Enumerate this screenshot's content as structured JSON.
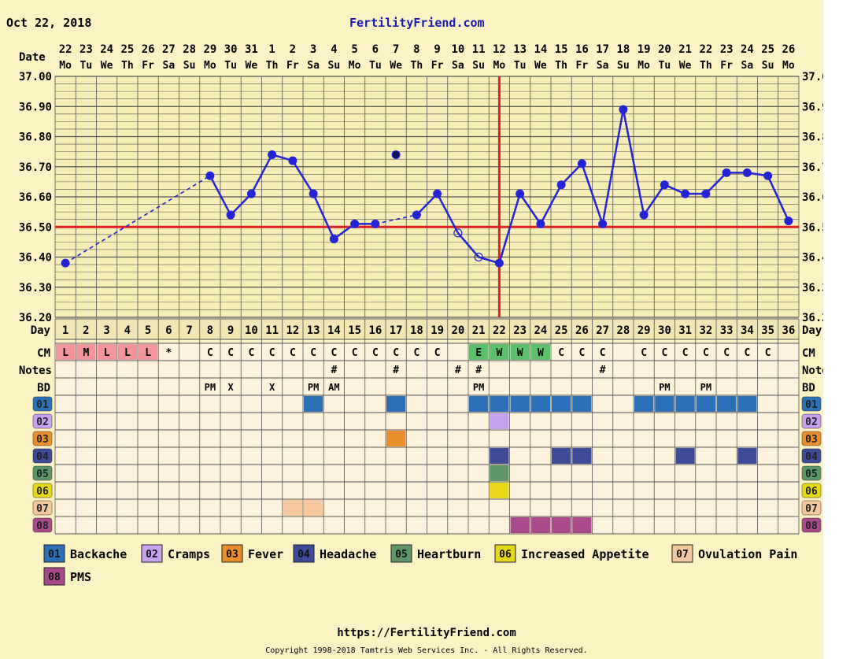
{
  "header": {
    "date": "Oct 22, 2018",
    "site": "FertilityFriend.com"
  },
  "footer": {
    "url": "https://FertilityFriend.com",
    "copyright": "Copyright 1998-2018 Tamtris Web Services Inc. - All Rights Reserved."
  },
  "row_labels": {
    "date": "Date",
    "day": "Day",
    "cm": "CM",
    "notes": "Notes",
    "bd": "BD"
  },
  "colors": {
    "line": "#2424d4",
    "coverline": "#e02020",
    "grid": "#555555",
    "background": "#fbf3c4",
    "cell": "#fdf3dc"
  },
  "chart_data": {
    "type": "line",
    "ylim": [
      36.2,
      37.0
    ],
    "yticks": [
      "36.20",
      "36.30",
      "36.40",
      "36.50",
      "36.60",
      "36.70",
      "36.80",
      "36.90",
      "37.00"
    ],
    "cycle_days": [
      1,
      2,
      3,
      4,
      5,
      6,
      7,
      8,
      9,
      10,
      11,
      12,
      13,
      14,
      15,
      16,
      17,
      18,
      19,
      20,
      21,
      22,
      23,
      24,
      25,
      26,
      27,
      28,
      29,
      30,
      31,
      32,
      33,
      34,
      35,
      36
    ],
    "dates": [
      "22",
      "23",
      "24",
      "25",
      "26",
      "27",
      "28",
      "29",
      "30",
      "31",
      "1",
      "2",
      "3",
      "4",
      "5",
      "6",
      "7",
      "8",
      "9",
      "10",
      "11",
      "12",
      "13",
      "14",
      "15",
      "16",
      "17",
      "18",
      "19",
      "20",
      "21",
      "22",
      "23",
      "24",
      "25",
      "26"
    ],
    "weekdays": [
      "Mo",
      "Tu",
      "We",
      "Th",
      "Fr",
      "Sa",
      "Su",
      "Mo",
      "Tu",
      "We",
      "Th",
      "Fr",
      "Sa",
      "Su",
      "Mo",
      "Tu",
      "We",
      "Th",
      "Fr",
      "Sa",
      "Su",
      "Mo",
      "Tu",
      "We",
      "Th",
      "Fr",
      "Sa",
      "Su",
      "Mo",
      "Tu",
      "We",
      "Th",
      "Fr",
      "Sa",
      "Su",
      "Mo"
    ],
    "temperatures": [
      36.38,
      null,
      null,
      null,
      null,
      null,
      null,
      36.67,
      36.54,
      36.61,
      36.74,
      36.72,
      36.61,
      36.46,
      36.51,
      36.51,
      36.74,
      36.54,
      36.61,
      36.48,
      36.4,
      36.38,
      36.61,
      36.51,
      36.64,
      36.71,
      36.51,
      36.89,
      36.54,
      36.64,
      36.61,
      36.61,
      36.68,
      36.68,
      36.67,
      36.52
    ],
    "discarded_days": [
      17
    ],
    "open_point_days": [
      20,
      21
    ],
    "coverline": 36.5,
    "ovulation_day": 22,
    "cm": [
      "L",
      "M",
      "L",
      "L",
      "L",
      "*",
      "",
      "C",
      "C",
      "C",
      "C",
      "C",
      "C",
      "C",
      "C",
      "C",
      "C",
      "C",
      "C",
      "",
      "E",
      "W",
      "W",
      "W",
      "C",
      "C",
      "C",
      "",
      "C",
      "C",
      "C",
      "C",
      "C",
      "C",
      "C",
      ""
    ],
    "notes": [
      "",
      "",
      "",
      "",
      "",
      "",
      "",
      "",
      "",
      "",
      "",
      "",
      "",
      "#",
      "",
      "",
      "#",
      "",
      "",
      "#",
      "#",
      "",
      "",
      "",
      "",
      "",
      "#",
      "",
      "",
      "",
      "",
      "",
      "",
      "",
      "",
      ""
    ],
    "bd": [
      "",
      "",
      "",
      "",
      "",
      "",
      "",
      "PM",
      "X",
      "",
      "X",
      "",
      "PM",
      "AM",
      "",
      "",
      "",
      "",
      "",
      "",
      "PM",
      "",
      "",
      "",
      "",
      "",
      "",
      "",
      "",
      "PM",
      "",
      "PM",
      "",
      "",
      "",
      ""
    ],
    "symptoms": [
      {
        "code": "01",
        "name": "Backache",
        "color": "#2c70b8",
        "days": [
          13,
          17,
          21,
          22,
          23,
          24,
          25,
          26,
          29,
          30,
          31,
          32,
          33,
          34
        ]
      },
      {
        "code": "02",
        "name": "Cramps",
        "color": "#c9a2ee",
        "days": [
          22
        ]
      },
      {
        "code": "03",
        "name": "Fever",
        "color": "#e88e2c",
        "days": [
          17
        ]
      },
      {
        "code": "04",
        "name": "Headache",
        "color": "#3d4b98",
        "days": [
          22,
          25,
          26,
          31,
          34
        ]
      },
      {
        "code": "05",
        "name": "Heartburn",
        "color": "#5e9668",
        "days": [
          22
        ]
      },
      {
        "code": "06",
        "name": "Increased Appetite",
        "color": "#e7d81a",
        "days": [
          22
        ]
      },
      {
        "code": "07",
        "name": "Ovulation Pain",
        "color": "#f6c8a0",
        "days": [
          12,
          13
        ]
      },
      {
        "code": "08",
        "name": "PMS",
        "color": "#a84a8c",
        "days": [
          23,
          24,
          25,
          26
        ]
      }
    ]
  }
}
